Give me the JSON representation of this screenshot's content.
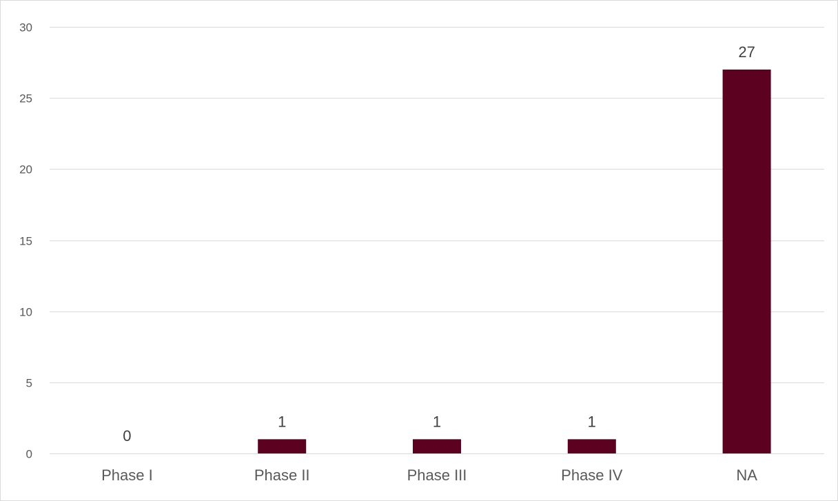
{
  "chart_data": {
    "type": "bar",
    "categories": [
      "Phase I",
      "Phase II",
      "Phase III",
      "Phase IV",
      "NA"
    ],
    "values": [
      0,
      1,
      1,
      1,
      27
    ],
    "data_labels": [
      "0",
      "1",
      "1",
      "1",
      "27"
    ],
    "title": "",
    "xlabel": "",
    "ylabel": "",
    "ylim": [
      0,
      30
    ],
    "y_ticks": [
      0,
      5,
      10,
      15,
      20,
      25,
      30
    ],
    "y_tick_labels": [
      "0",
      "5",
      "10",
      "15",
      "20",
      "25",
      "30"
    ],
    "grid": true,
    "legend": "none",
    "bar_color": "#5c0120",
    "grid_color": "#d9d9d9",
    "axis_text_color": "#595959"
  }
}
